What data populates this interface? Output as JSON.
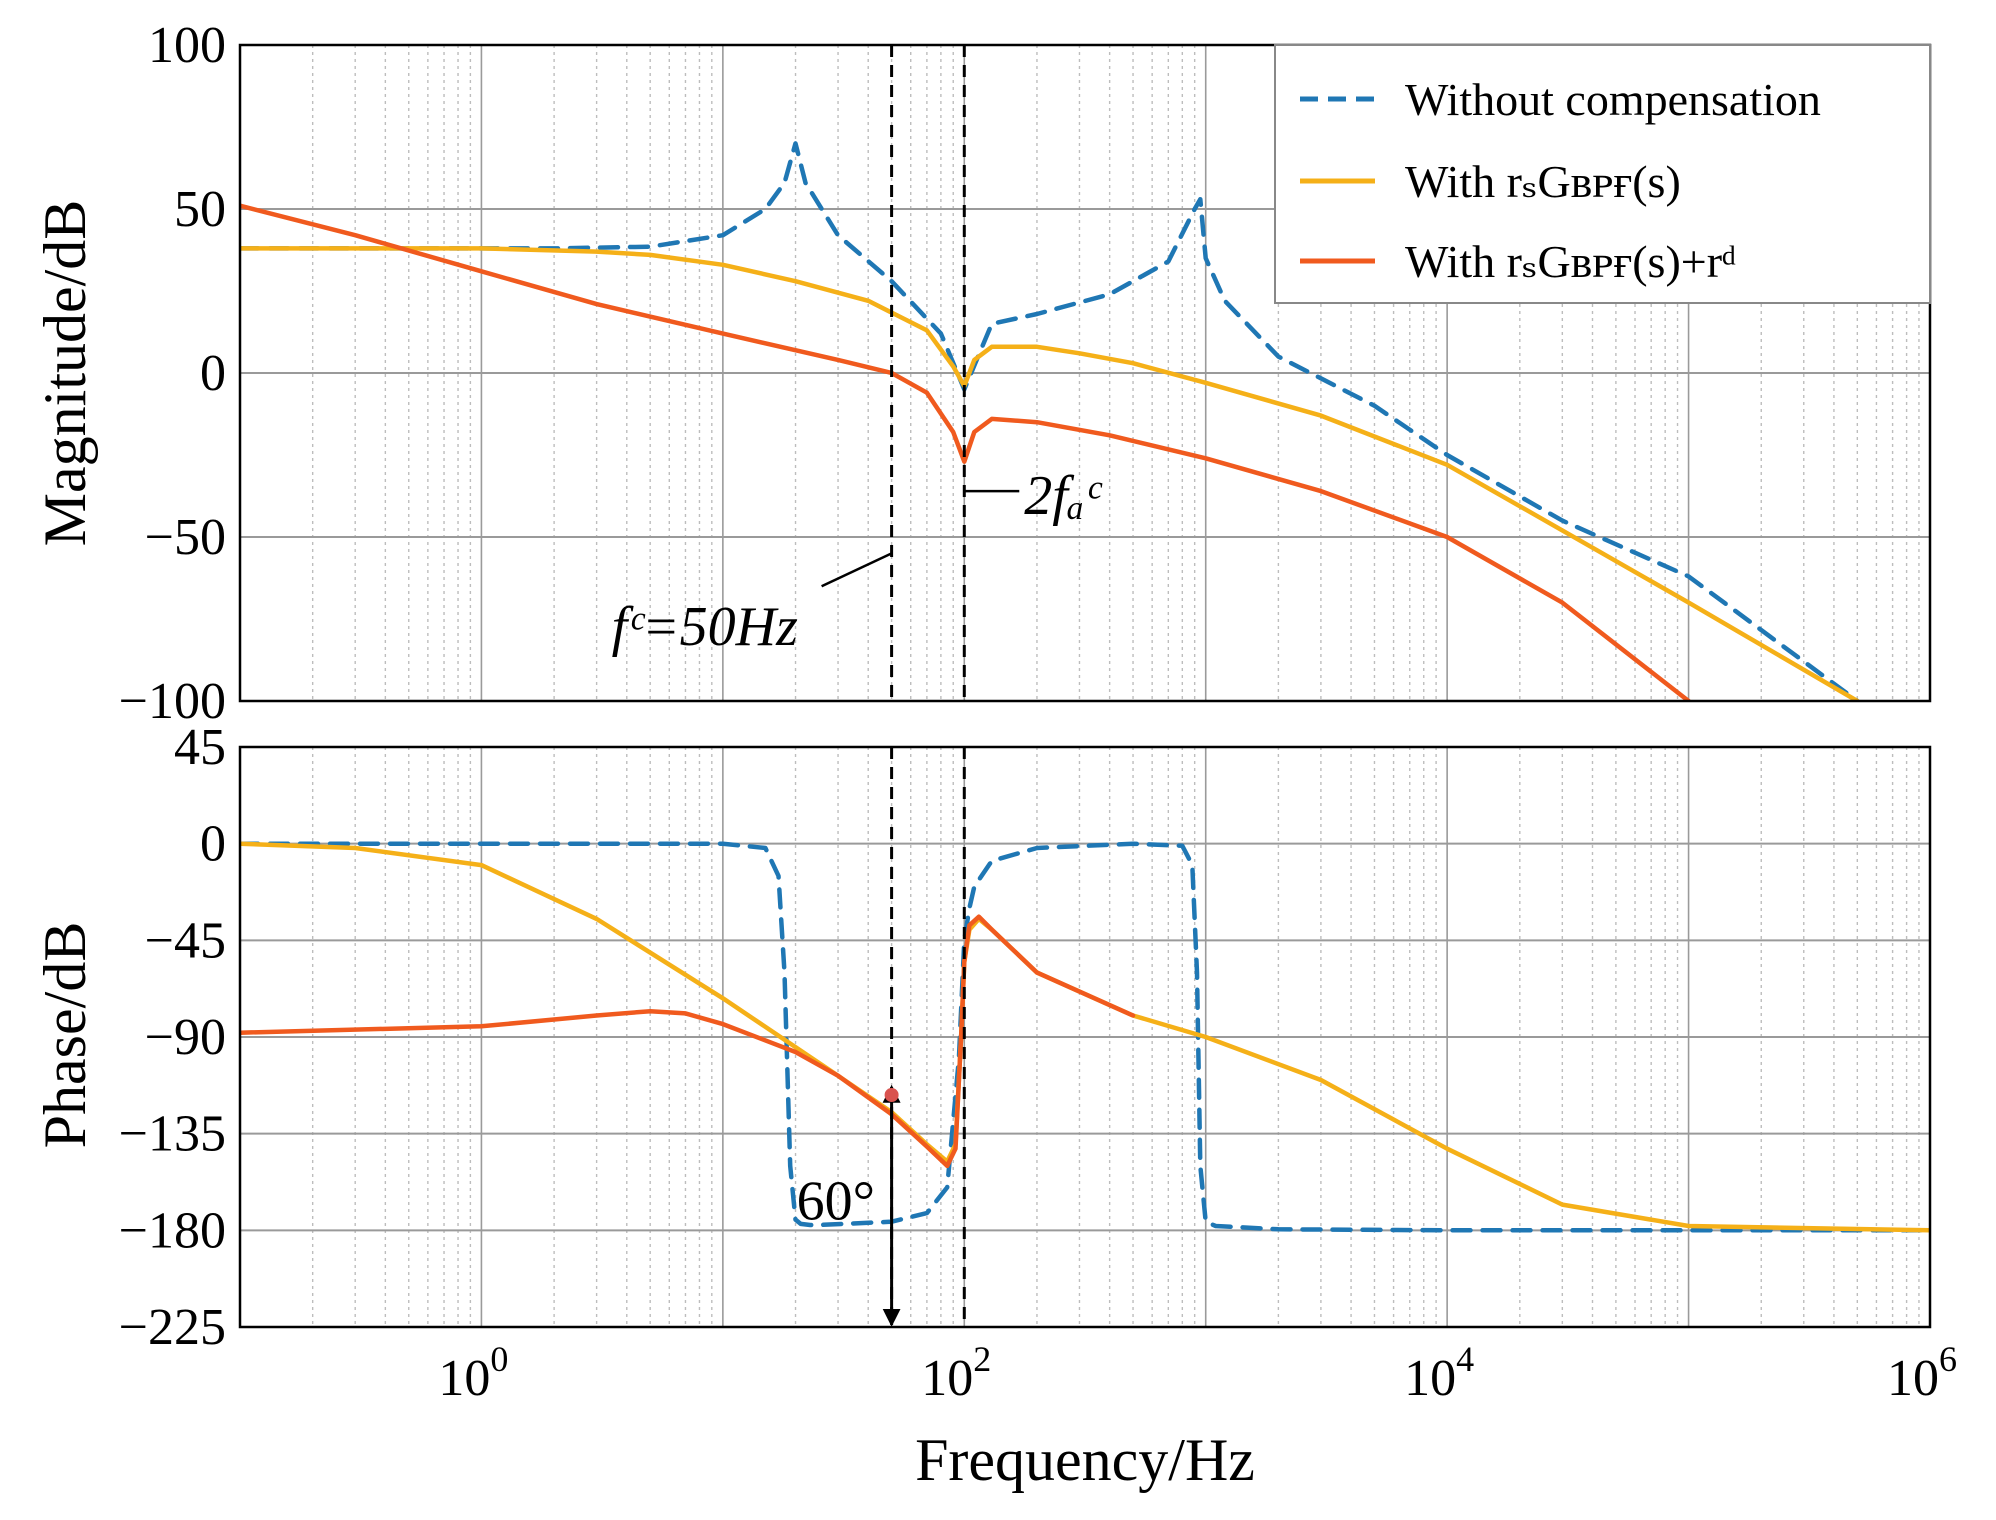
{
  "chart_data": [
    {
      "type": "line",
      "panel": "magnitude",
      "x_scale": "log",
      "xlim": [
        0.1,
        1000000
      ],
      "ylim": [
        -100,
        100
      ],
      "ylabel": "Magnitude/dB",
      "yticks": [
        "100",
        "50",
        "0",
        "−50",
        "−100"
      ],
      "grid": true,
      "legend": {
        "placement": "top-right",
        "entries": [
          {
            "text": "Without compensation",
            "series": "without"
          },
          {
            "text": "With rₛGʙᴘғ(s)",
            "series": "with_bpf"
          },
          {
            "text": "With rₛGʙᴘғ(s)+rᵈ",
            "series": "with_bpf_rd"
          }
        ]
      },
      "series": [
        {
          "name": "Without compensation",
          "key": "without",
          "color": "#1f77b4",
          "style": "dashed",
          "x": [
            0.1,
            1,
            2,
            5,
            10,
            15,
            18,
            20,
            22,
            30,
            50,
            80,
            100,
            130,
            200,
            400,
            700,
            900,
            950,
            1000,
            1200,
            2000,
            5000,
            10000,
            30000,
            100000,
            500000
          ],
          "y": [
            38,
            38,
            38,
            38.5,
            42,
            50,
            58,
            70,
            58,
            42,
            28,
            12,
            -5,
            15,
            18,
            24,
            34,
            50,
            53,
            35,
            22,
            5,
            -10,
            -25,
            -45,
            -62,
            -100
          ]
        },
        {
          "name": "With rsGBPF(s)",
          "key": "with_bpf",
          "color": "#f5b018",
          "style": "solid",
          "x": [
            0.1,
            0.5,
            1,
            3,
            5,
            10,
            20,
            40,
            70,
            90,
            100,
            110,
            130,
            200,
            300,
            500,
            1000,
            3000,
            10000,
            30000,
            100000,
            500000
          ],
          "y": [
            38,
            38,
            38,
            37,
            36,
            33,
            28,
            22,
            13,
            2,
            -4,
            4,
            8,
            8,
            6,
            3,
            -3,
            -13,
            -28,
            -48,
            -70,
            -100
          ]
        },
        {
          "name": "With rsGBPF(s)+rd",
          "key": "with_bpf_rd",
          "color": "#f05a1e",
          "style": "solid",
          "x": [
            0.1,
            0.3,
            1,
            3,
            10,
            30,
            50,
            70,
            90,
            100,
            110,
            130,
            200,
            400,
            1000,
            3000,
            10000,
            30000,
            100000
          ],
          "y": [
            51,
            42,
            31,
            21,
            12,
            4,
            0,
            -6,
            -18,
            -27,
            -18,
            -14,
            -15,
            -19,
            -26,
            -36,
            -50,
            -70,
            -100
          ]
        }
      ],
      "annotations": [
        {
          "text": "fᶜ=50Hz",
          "x": 50
        },
        {
          "text": "2fₐᶜ",
          "x": 100
        }
      ]
    },
    {
      "type": "line",
      "panel": "phase",
      "x_scale": "log",
      "xlim": [
        0.1,
        1000000
      ],
      "ylim": [
        -225,
        45
      ],
      "xlabel": "Frequency/Hz",
      "ylabel": "Phase/dB",
      "yticks": [
        "45",
        "0",
        "−45",
        "−90",
        "−135",
        "−180",
        "−225"
      ],
      "xticks": [
        {
          "base": "10",
          "exp": "0"
        },
        {
          "base": "10",
          "exp": "2"
        },
        {
          "base": "10",
          "exp": "4"
        },
        {
          "base": "10",
          "exp": "6"
        }
      ],
      "grid": true,
      "series": [
        {
          "name": "Without compensation",
          "key": "without",
          "color": "#1f77b4",
          "style": "dashed",
          "x": [
            0.1,
            1,
            10,
            15,
            17,
            18,
            19,
            20,
            21,
            23,
            25,
            50,
            70,
            85,
            95,
            100,
            105,
            110,
            130,
            200,
            500,
            800,
            880,
            920,
            950,
            1000,
            1100,
            2000,
            10000,
            1000000
          ],
          "y": [
            0,
            0,
            0,
            -2,
            -15,
            -60,
            -150,
            -175,
            -177,
            -177.5,
            -177.5,
            -176,
            -172,
            -160,
            -100,
            -45,
            -30,
            -20,
            -8,
            -2,
            0,
            -1,
            -10,
            -60,
            -150,
            -176,
            -178,
            -179.5,
            -180,
            -180
          ]
        },
        {
          "name": "With rsGBPF(s)",
          "key": "with_bpf",
          "color": "#f5b018",
          "style": "solid",
          "x": [
            0.1,
            0.3,
            1,
            3,
            10,
            30,
            50,
            70,
            85,
            92,
            97,
            100,
            105,
            115,
            130,
            200,
            500,
            1000,
            3000,
            10000,
            30000,
            100000,
            1000000
          ],
          "y": [
            0,
            -2,
            -10,
            -35,
            -72,
            -108,
            -125,
            -140,
            -148,
            -140,
            -90,
            -55,
            -40,
            -35,
            -40,
            -60,
            -80,
            -90,
            -110,
            -142,
            -168,
            -178,
            -180
          ]
        },
        {
          "name": "With rsGBPF(s)+rd",
          "key": "with_bpf_rd",
          "color": "#f05a1e",
          "style": "solid",
          "x": [
            0.1,
            1,
            3,
            5,
            7,
            10,
            20,
            30,
            50,
            70,
            85,
            92,
            97,
            100,
            105,
            115,
            130,
            200,
            500
          ],
          "y": [
            -88,
            -85,
            -80,
            -78,
            -79,
            -84,
            -97,
            -108,
            -126,
            -141,
            -150,
            -142,
            -90,
            -55,
            -38,
            -34,
            -40,
            -60,
            -80
          ]
        }
      ],
      "annotations": [
        {
          "text": "60°",
          "x": 50,
          "y_top": -117,
          "y_bottom": -225
        }
      ]
    }
  ]
}
